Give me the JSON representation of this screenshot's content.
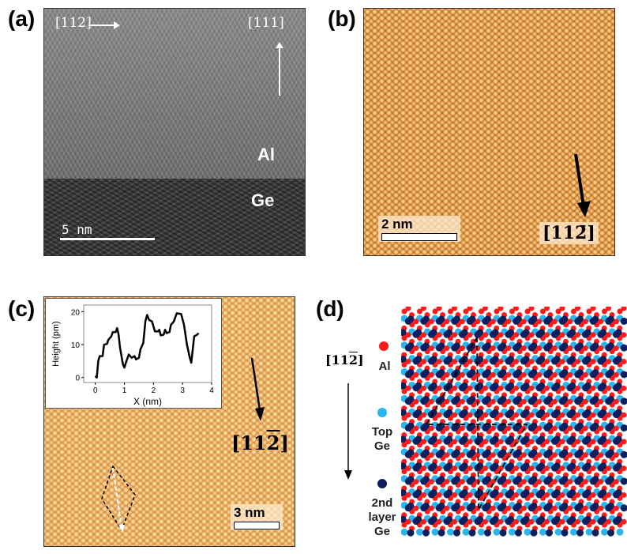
{
  "panels": {
    "a": {
      "label": "(a)",
      "dir1": "[112]",
      "dir2": "[111]",
      "layer_top": "Al",
      "layer_bottom": "Ge",
      "scale": "5 nm"
    },
    "b": {
      "label": "(b)",
      "scale": "2 nm",
      "direction": "[112̄]",
      "direction_base": "[11",
      "direction_bar": "2",
      "direction_end": "]"
    },
    "c": {
      "label": "(c)",
      "scale": "3 nm",
      "direction_base": "[11",
      "direction_bar": "2",
      "direction_end": "]"
    },
    "d": {
      "label": "(d)",
      "direction_base": "[11",
      "direction_bar": "2",
      "direction_end": "]",
      "legend": [
        {
          "label": "Al",
          "color": "#ff1a1a"
        },
        {
          "label": "Top Ge",
          "color": "#29b6f0"
        },
        {
          "label": "2nd layer Ge",
          "color": "#0d1f5c"
        }
      ]
    }
  },
  "chart_data": {
    "type": "line",
    "xlabel": "X (nm)",
    "ylabel": "Height (pm)",
    "xlim": [
      -0.4,
      4
    ],
    "ylim": [
      -1.5,
      22
    ],
    "xticks": [
      0,
      1,
      2,
      3,
      4
    ],
    "yticks": [
      0,
      10,
      20
    ],
    "x": [
      0,
      0.05,
      0.1,
      0.15,
      0.25,
      0.3,
      0.4,
      0.45,
      0.55,
      0.6,
      0.7,
      0.75,
      0.8,
      0.85,
      0.95,
      1.0,
      1.05,
      1.15,
      1.25,
      1.35,
      1.4,
      1.5,
      1.55,
      1.65,
      1.72,
      1.78,
      1.85,
      1.95,
      2.05,
      2.15,
      2.2,
      2.25,
      2.35,
      2.4,
      2.45,
      2.55,
      2.6,
      2.7,
      2.8,
      2.95,
      3.05,
      3.15,
      3.25,
      3.3,
      3.4,
      3.5,
      3.55
    ],
    "y": [
      0.5,
      0,
      5,
      6.5,
      6.5,
      10,
      10.2,
      11.5,
      12.5,
      13.8,
      13.8,
      15,
      13,
      9,
      4,
      3,
      4.5,
      7,
      6,
      6.5,
      5.5,
      6,
      8.5,
      10.5,
      17,
      19,
      17.5,
      17,
      14,
      14,
      14.5,
      12.8,
      13,
      14.5,
      13.5,
      13.8,
      16,
      17,
      19.5,
      19.3,
      16,
      10,
      6,
      4.5,
      12.5,
      13,
      13.5
    ]
  }
}
